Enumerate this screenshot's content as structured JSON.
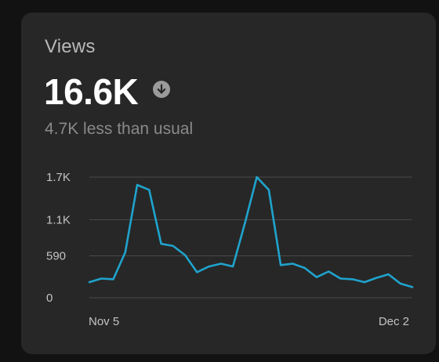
{
  "card": {
    "title": "Views",
    "value": "16.6K",
    "trend_icon": "arrow-down-circle-icon",
    "delta_text": "4.7K less than usual"
  },
  "colors": {
    "line": "#1fa3cc",
    "grid": "#4a4a4a",
    "card_bg": "#272727"
  },
  "chart_data": {
    "type": "line",
    "y_tick_labels": [
      "1.7K",
      "1.1K",
      "590",
      "0"
    ],
    "y_ticks": [
      1700,
      1100,
      590,
      0
    ],
    "x_tick_labels": [
      "Nov 5",
      "Dec 2"
    ],
    "ylim": [
      0,
      1700
    ],
    "grid": true,
    "series": [
      {
        "values": [
          220,
          270,
          260,
          640,
          1590,
          1520,
          760,
          730,
          600,
          360,
          440,
          480,
          440,
          1050,
          1700,
          1520,
          460,
          480,
          420,
          290,
          370,
          270,
          260,
          220,
          280,
          330,
          200,
          150
        ]
      }
    ]
  }
}
